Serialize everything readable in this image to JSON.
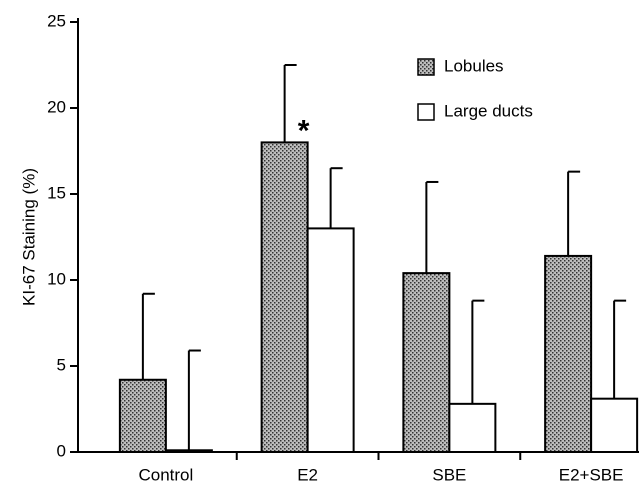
{
  "chart_data": {
    "type": "bar",
    "ylabel": "KI-67 Staining (%)",
    "categories": [
      "Control",
      "E2",
      "SBE",
      "E2+SBE"
    ],
    "series": [
      {
        "name": "Lobules",
        "color": "#8c8c8c",
        "values": [
          4.2,
          18.0,
          10.4,
          11.4
        ],
        "errors": [
          5.0,
          4.5,
          5.3,
          4.9
        ]
      },
      {
        "name": "Large ducts",
        "color": "#ffffff",
        "values": [
          0.1,
          13.0,
          2.8,
          3.1
        ],
        "errors": [
          5.8,
          3.5,
          6.0,
          5.7
        ]
      }
    ],
    "annotations": [
      {
        "text": "*",
        "category": 1,
        "series": 0
      }
    ],
    "ylim": [
      0,
      25
    ],
    "yticks": [
      0,
      5,
      10,
      15,
      20,
      25
    ],
    "legend": "upper right"
  }
}
